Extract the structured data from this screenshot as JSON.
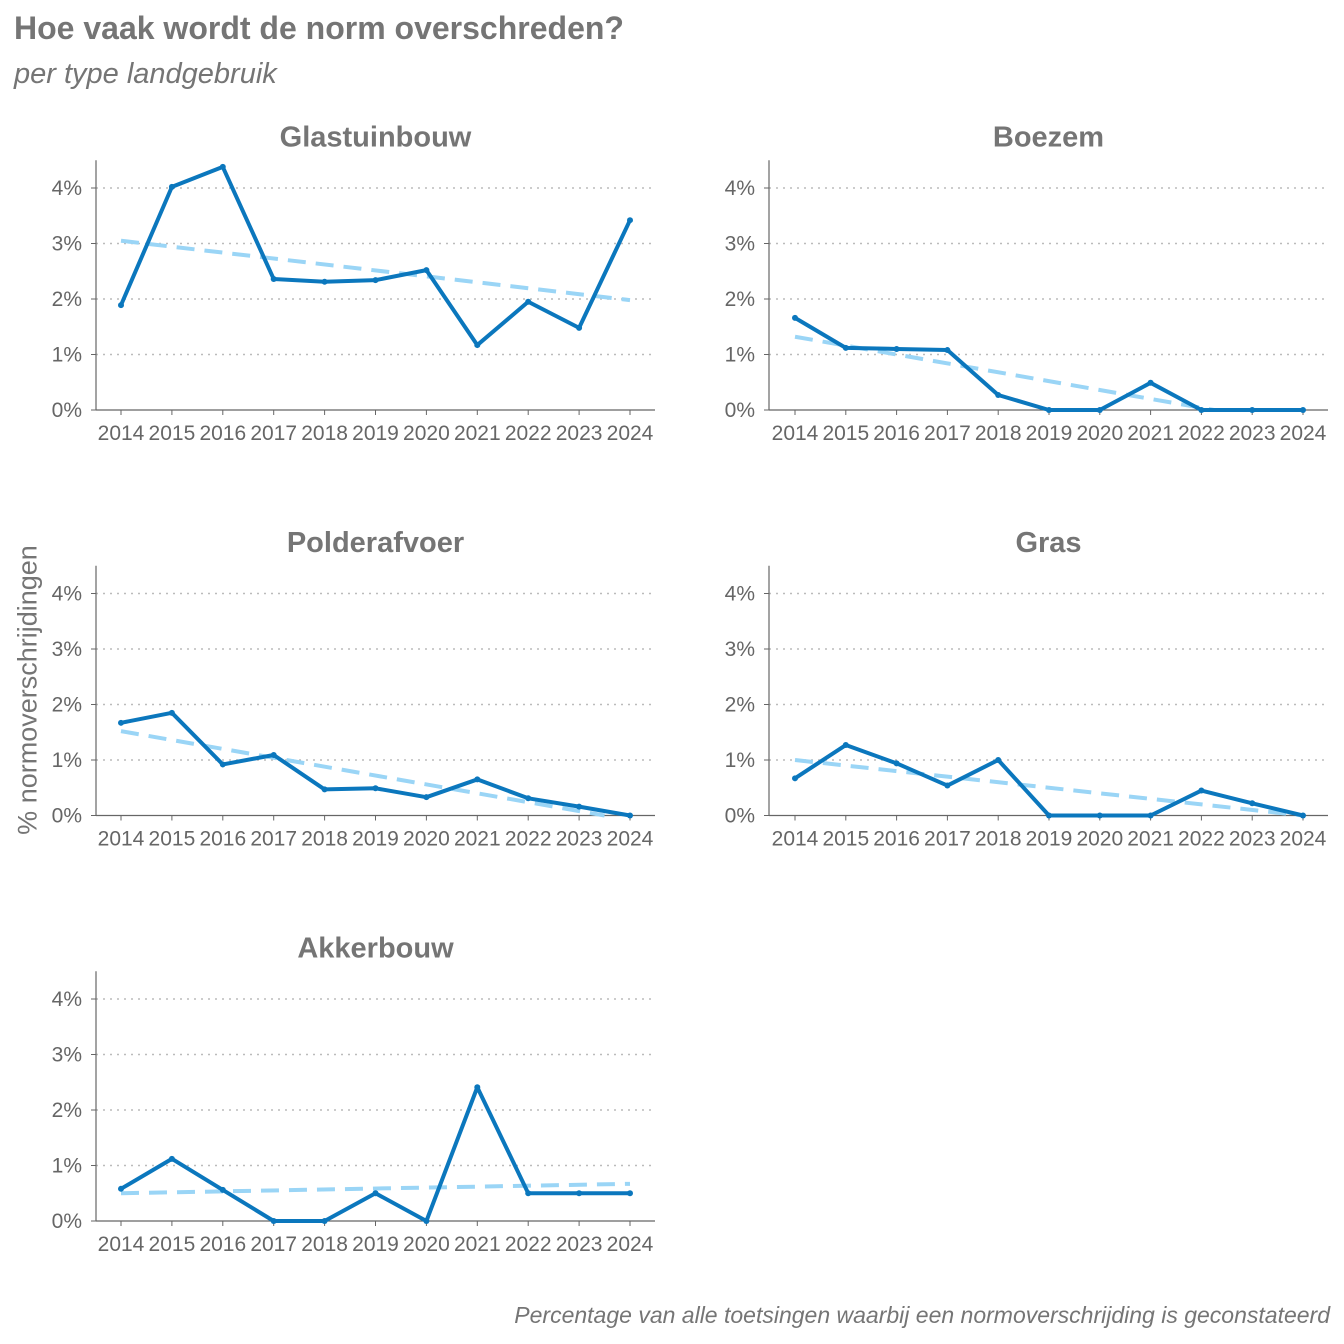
{
  "chart_data": {
    "type": "line",
    "title": "Hoe vaak wordt de norm overschreden?",
    "subtitle": "per type landgebruik",
    "ylabel": "% normoverschrijdingen",
    "caption": "Percentage van alle toetsingen waarbij een normoverschrijding is geconstateerd",
    "x": [
      2014,
      2015,
      2016,
      2017,
      2018,
      2019,
      2020,
      2021,
      2022,
      2023,
      2024
    ],
    "ylim": [
      0,
      4.5
    ],
    "yticks": [
      0,
      1,
      2,
      3,
      4
    ],
    "ytick_labels": [
      "0%",
      "1%",
      "2%",
      "3%",
      "4%"
    ],
    "grid": "horizontal dotted",
    "colors": {
      "line": "#0b77bd",
      "trend": "#9ad5f6"
    },
    "panels": [
      {
        "name": "Glastuinbouw",
        "values": [
          1.89,
          4.02,
          4.38,
          2.36,
          2.31,
          2.34,
          2.52,
          1.17,
          1.95,
          1.48,
          3.42
        ],
        "trend": [
          3.05,
          1.98
        ]
      },
      {
        "name": "Boezem",
        "values": [
          1.66,
          1.12,
          1.1,
          1.08,
          0.27,
          0,
          0,
          0.49,
          0,
          0,
          0
        ],
        "trend": [
          1.32,
          -0.28
        ]
      },
      {
        "name": "Polderafvoer",
        "values": [
          1.67,
          1.85,
          0.92,
          1.09,
          0.47,
          0.49,
          0.33,
          0.65,
          0.31,
          0.16,
          0
        ],
        "trend": [
          1.52,
          -0.08
        ]
      },
      {
        "name": "Gras",
        "values": [
          0.67,
          1.27,
          0.94,
          0.54,
          1.0,
          0,
          0,
          0,
          0.45,
          0.22,
          0
        ],
        "trend": [
          1.0,
          0.0
        ]
      },
      {
        "name": "Akkerbouw",
        "values": [
          0.58,
          1.12,
          0.56,
          0,
          0,
          0.5,
          0,
          2.41,
          0.5,
          0.5,
          0.5
        ],
        "trend": [
          0.5,
          0.67
        ]
      }
    ]
  }
}
